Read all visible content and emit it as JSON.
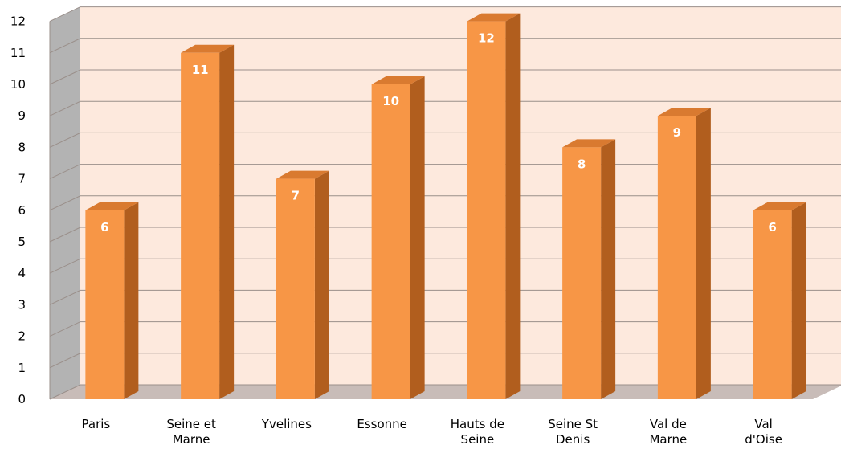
{
  "chart_data": {
    "type": "bar",
    "title": "",
    "xlabel": "",
    "ylabel": "",
    "ylim": [
      0,
      12
    ],
    "yticks": [
      0,
      1,
      2,
      3,
      4,
      5,
      6,
      7,
      8,
      9,
      10,
      11,
      12
    ],
    "grid": true,
    "style": "3d-column",
    "categories": [
      [
        "Paris"
      ],
      [
        "Seine et",
        "Marne"
      ],
      [
        "Yvelines"
      ],
      [
        "Essonne"
      ],
      [
        "Hauts de",
        "Seine"
      ],
      [
        "Seine St",
        "Denis"
      ],
      [
        "Val de",
        "Marne"
      ],
      [
        "Val",
        "d'Oise"
      ]
    ],
    "values": [
      6,
      11,
      7,
      10,
      12,
      8,
      9,
      6
    ],
    "colors": {
      "bar_front": "#f79646",
      "bar_side": "#b15e1e",
      "bar_top": "#d97a30",
      "back_wall": "#fde9dd",
      "side_wall": "#b3b3b3",
      "floor": "#c8bcb8",
      "gridline": "#9a8f8a",
      "data_label": "#ffffff"
    }
  }
}
